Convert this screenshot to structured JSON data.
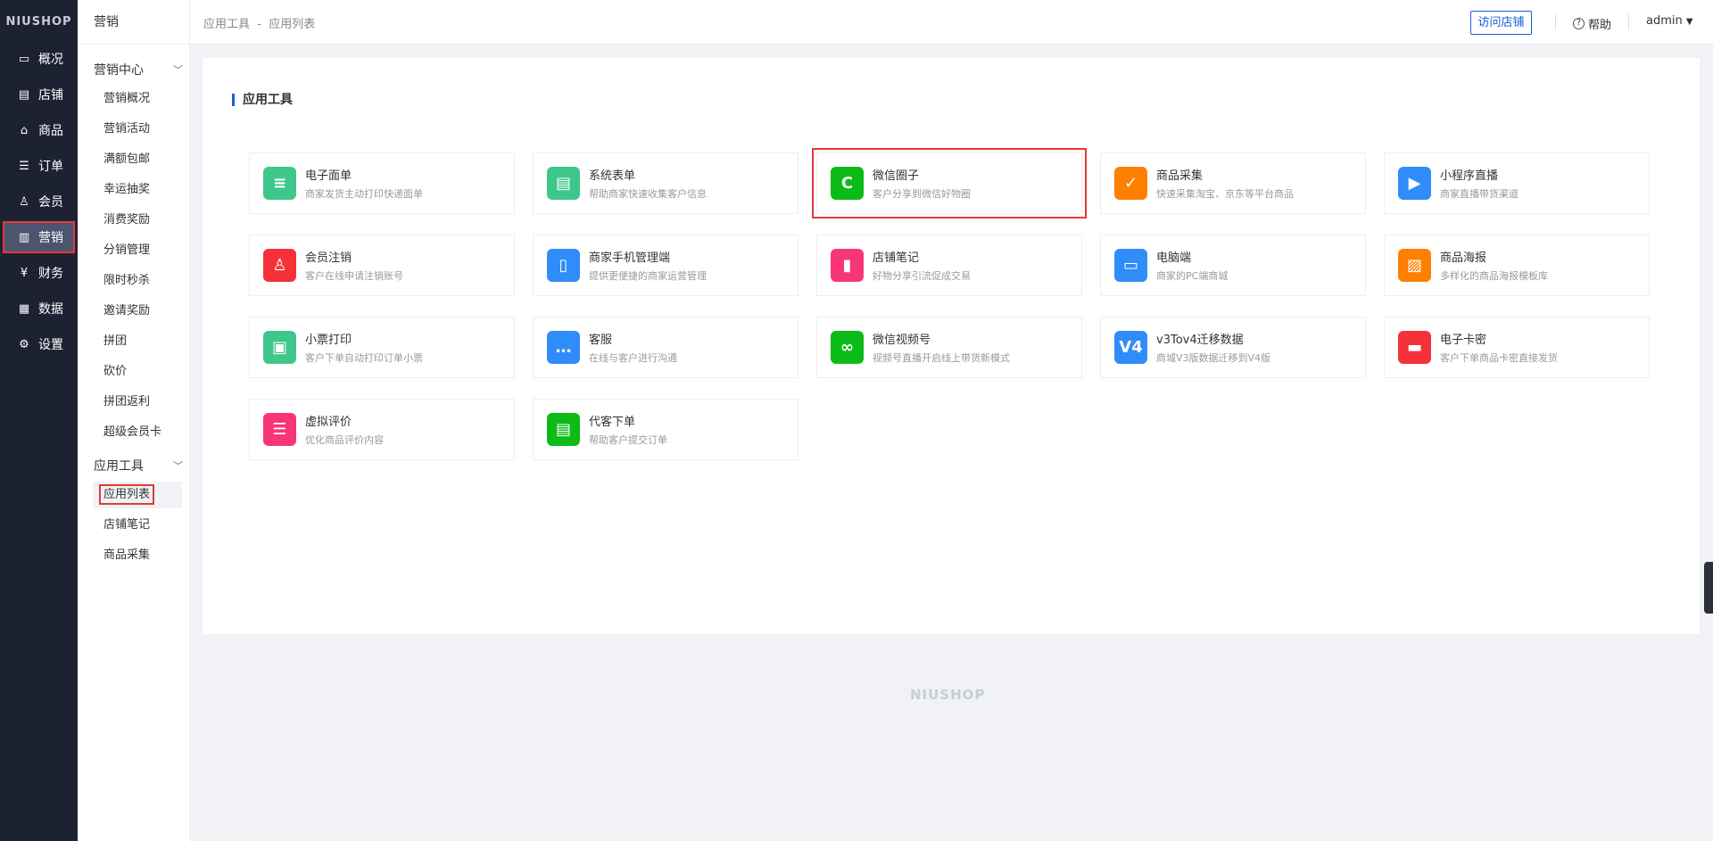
{
  "brand": "NIUSHOP",
  "nav": [
    {
      "label": "概况",
      "icon": "chart-monitor-icon",
      "g": "▭"
    },
    {
      "label": "店铺",
      "icon": "store-icon",
      "g": "▤"
    },
    {
      "label": "商品",
      "icon": "bag-icon",
      "g": "⌂"
    },
    {
      "label": "订单",
      "icon": "order-list-icon",
      "g": "☰"
    },
    {
      "label": "会员",
      "icon": "user-icon",
      "g": "♙"
    },
    {
      "label": "营销",
      "icon": "bar-chart-icon",
      "g": "▥",
      "active": true
    },
    {
      "label": "财务",
      "icon": "yen-icon",
      "g": "¥"
    },
    {
      "label": "数据",
      "icon": "data-icon",
      "g": "▦"
    },
    {
      "label": "设置",
      "icon": "gear-icon",
      "g": "⚙"
    }
  ],
  "side2": {
    "title": "营销",
    "group1": "营销中心",
    "group1_items": [
      "营销概况",
      "营销活动",
      "满额包邮",
      "幸运抽奖",
      "消费奖励",
      "分销管理",
      "限时秒杀",
      "邀请奖励",
      "拼团",
      "砍价",
      "拼团返利",
      "超级会员卡"
    ],
    "group2": "应用工具",
    "group2_items": [
      "应用列表",
      "店铺笔记",
      "商品采集"
    ],
    "active": "应用列表"
  },
  "header": {
    "crumb1": "应用工具",
    "sep": "-",
    "crumb2": "应用列表",
    "visit": "访问店铺",
    "help": "帮助",
    "user": "admin"
  },
  "main": {
    "title": "应用工具",
    "apps": [
      {
        "name": "电子面单",
        "desc": "商家发货主动打印快递面单",
        "color": "#3fc78b",
        "g": "≡"
      },
      {
        "name": "系统表单",
        "desc": "帮助商家快速收集客户信息",
        "color": "#3fc78b",
        "g": "▤"
      },
      {
        "name": "微信圈子",
        "desc": "客户分享到微信好物圈",
        "color": "#0dbb17",
        "g": "C",
        "hl": true
      },
      {
        "name": "商品采集",
        "desc": "快速采集淘宝、京东等平台商品",
        "color": "#ff7f00",
        "g": "✓"
      },
      {
        "name": "小程序直播",
        "desc": "商家直播带货渠道",
        "color": "#2f8cf9",
        "g": "▶"
      },
      {
        "name": "会员注销",
        "desc": "客户在线申请注销账号",
        "color": "#f5323a",
        "g": "♙"
      },
      {
        "name": "商家手机管理端",
        "desc": "提供更便捷的商家运营管理",
        "color": "#2f8cf9",
        "g": "▯"
      },
      {
        "name": "店铺笔记",
        "desc": "好物分享引流促成交易",
        "color": "#f9357a",
        "g": "▮"
      },
      {
        "name": "电脑端",
        "desc": "商家的PC端商城",
        "color": "#2f8cf9",
        "g": "▭"
      },
      {
        "name": "商品海报",
        "desc": "多样化的商品海报模板库",
        "color": "#ff7f00",
        "g": "▨"
      },
      {
        "name": "小票打印",
        "desc": "客户下单自动打印订单小票",
        "color": "#3fc78b",
        "g": "▣"
      },
      {
        "name": "客服",
        "desc": "在线与客户进行沟通",
        "color": "#2f8cf9",
        "g": "…"
      },
      {
        "name": "微信视频号",
        "desc": "视频号直播开启线上带货新模式",
        "color": "#0dbb17",
        "g": "∞"
      },
      {
        "name": "v3Tov4迁移数据",
        "desc": "商城V3版数据迁移到V4版",
        "color": "#2f8cf9",
        "g": "V4"
      },
      {
        "name": "电子卡密",
        "desc": "客户下单商品卡密直接发货",
        "color": "#f5323a",
        "g": "▬"
      },
      {
        "name": "虚拟评价",
        "desc": "优化商品评价内容",
        "color": "#f9357a",
        "g": "☰"
      },
      {
        "name": "代客下单",
        "desc": "帮助客户提交订单",
        "color": "#0dbb17",
        "g": "▤"
      }
    ]
  },
  "footer": "NIUSHOP"
}
